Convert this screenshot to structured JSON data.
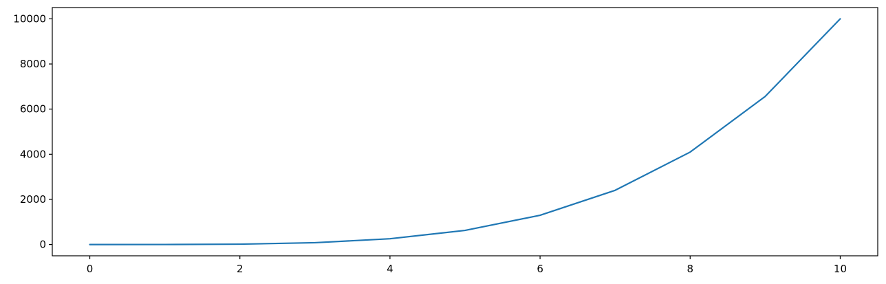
{
  "chart_data": {
    "type": "line",
    "title": "",
    "xlabel": "",
    "ylabel": "",
    "xlim": [
      -0.5,
      10.5
    ],
    "ylim": [
      -500,
      10500
    ],
    "xticks": [
      0,
      2,
      4,
      6,
      8,
      10
    ],
    "xtick_labels": [
      "0",
      "2",
      "4",
      "6",
      "8",
      "10"
    ],
    "yticks": [
      0,
      2000,
      4000,
      6000,
      8000,
      10000
    ],
    "ytick_labels": [
      "0",
      "2000",
      "4000",
      "6000",
      "8000",
      "10000"
    ],
    "grid": false,
    "series": [
      {
        "color": "#1f77b4",
        "x": [
          0,
          1,
          2,
          3,
          4,
          5,
          6,
          7,
          8,
          9,
          10
        ],
        "y": [
          0,
          1,
          16,
          81,
          256,
          625,
          1296,
          2401,
          4096,
          6561,
          10000
        ]
      }
    ]
  }
}
